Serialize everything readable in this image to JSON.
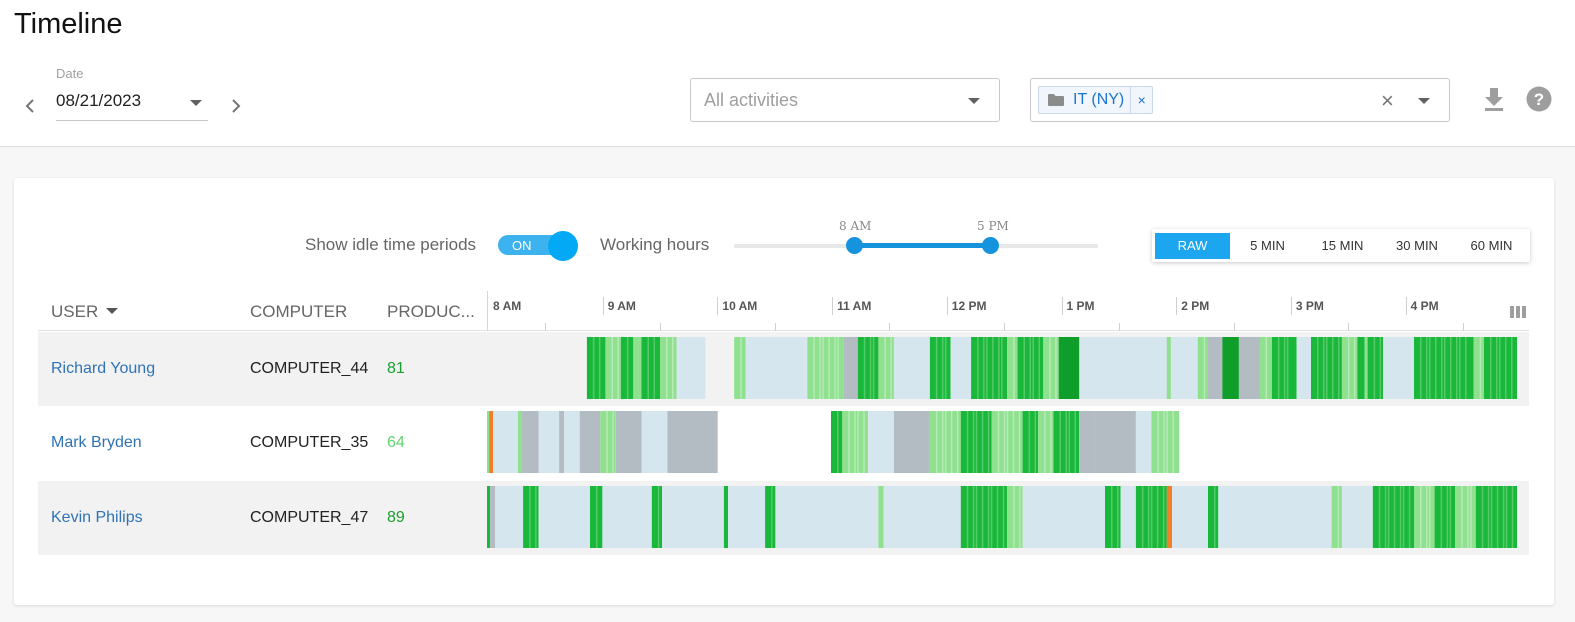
{
  "header": {
    "title": "Timeline",
    "date_label": "Date",
    "date_value": "08/21/2023",
    "activities_placeholder": "All activities",
    "group_chip": "IT (NY)",
    "chip_remove": "×",
    "clear": "×"
  },
  "controls": {
    "idle_label": "Show idle time periods",
    "idle_toggle": "ON",
    "working_hours_label": "Working hours",
    "working_hours": {
      "start": "8 AM",
      "end": "5 PM"
    },
    "granularity": [
      "RAW",
      "5 MIN",
      "15 MIN",
      "30 MIN",
      "60 MIN"
    ],
    "granularity_selected": "RAW"
  },
  "table": {
    "columns": {
      "user": "USER",
      "computer": "COMPUTER",
      "productivity": "PRODUC..."
    },
    "axis_labels": [
      "8 AM",
      "9 AM",
      "10 AM",
      "11 AM",
      "12 PM",
      "1 PM",
      "2 PM",
      "3 PM",
      "4 PM"
    ],
    "rows": [
      {
        "user": "Richard Young",
        "computer": "COMPUTER_44",
        "productivity": "81",
        "productivity_color": "#1a9e2e",
        "segments": [
          [
            0.097,
            0.115,
            "green"
          ],
          [
            0.115,
            0.13,
            "lgreen"
          ],
          [
            0.13,
            0.142,
            "green"
          ],
          [
            0.142,
            0.15,
            "lgreen"
          ],
          [
            0.15,
            0.168,
            "green"
          ],
          [
            0.168,
            0.184,
            "lgreen"
          ],
          [
            0.184,
            0.212,
            "idle"
          ],
          [
            0.24,
            0.251,
            "lgreen"
          ],
          [
            0.251,
            0.311,
            "idle"
          ],
          [
            0.311,
            0.346,
            "lgreen"
          ],
          [
            0.346,
            0.36,
            "gray"
          ],
          [
            0.36,
            0.38,
            "green"
          ],
          [
            0.38,
            0.395,
            "lgreen"
          ],
          [
            0.395,
            0.43,
            "idle"
          ],
          [
            0.43,
            0.45,
            "green"
          ],
          [
            0.45,
            0.47,
            "idle"
          ],
          [
            0.47,
            0.505,
            "green"
          ],
          [
            0.505,
            0.515,
            "lgreen"
          ],
          [
            0.515,
            0.54,
            "green"
          ],
          [
            0.54,
            0.555,
            "lgreen"
          ],
          [
            0.555,
            0.575,
            "dgreen"
          ],
          [
            0.575,
            0.66,
            "idle"
          ],
          [
            0.66,
            0.664,
            "lgreen"
          ],
          [
            0.664,
            0.69,
            "idle"
          ],
          [
            0.69,
            0.7,
            "lgreen"
          ],
          [
            0.7,
            0.714,
            "gray"
          ],
          [
            0.714,
            0.73,
            "dgreen"
          ],
          [
            0.73,
            0.75,
            "gray"
          ],
          [
            0.75,
            0.762,
            "lgreen"
          ],
          [
            0.762,
            0.786,
            "green"
          ],
          [
            0.786,
            0.8,
            "idle"
          ],
          [
            0.8,
            0.83,
            "green"
          ],
          [
            0.83,
            0.845,
            "lgreen"
          ],
          [
            0.845,
            0.852,
            "green"
          ],
          [
            0.852,
            0.855,
            "lgreen"
          ],
          [
            0.855,
            0.87,
            "green"
          ],
          [
            0.87,
            0.9,
            "idle"
          ],
          [
            0.9,
            0.958,
            "green"
          ],
          [
            0.958,
            0.968,
            "lgreen"
          ],
          [
            0.968,
            1.0,
            "green"
          ]
        ]
      },
      {
        "user": "Mark Bryden",
        "computer": "COMPUTER_35",
        "productivity": "64",
        "productivity_color": "#5fd46e",
        "segments": [
          [
            0.0,
            0.002,
            "lgreen"
          ],
          [
            0.002,
            0.006,
            "orange"
          ],
          [
            0.006,
            0.03,
            "idle"
          ],
          [
            0.03,
            0.034,
            "lgreen"
          ],
          [
            0.034,
            0.05,
            "gray"
          ],
          [
            0.05,
            0.07,
            "idle"
          ],
          [
            0.07,
            0.075,
            "gray"
          ],
          [
            0.075,
            0.09,
            "idle"
          ],
          [
            0.09,
            0.11,
            "gray"
          ],
          [
            0.11,
            0.125,
            "lgreen"
          ],
          [
            0.125,
            0.15,
            "gray"
          ],
          [
            0.15,
            0.175,
            "idle"
          ],
          [
            0.175,
            0.2,
            "gray"
          ],
          [
            0.2,
            0.224,
            "gray"
          ],
          [
            0.334,
            0.345,
            "green"
          ],
          [
            0.345,
            0.37,
            "lgreen"
          ],
          [
            0.37,
            0.395,
            "idle"
          ],
          [
            0.395,
            0.43,
            "gray"
          ],
          [
            0.43,
            0.46,
            "lgreen"
          ],
          [
            0.46,
            0.49,
            "green"
          ],
          [
            0.49,
            0.52,
            "lgreen"
          ],
          [
            0.52,
            0.535,
            "green"
          ],
          [
            0.535,
            0.55,
            "lgreen"
          ],
          [
            0.55,
            0.575,
            "green"
          ],
          [
            0.575,
            0.59,
            "gray"
          ],
          [
            0.59,
            0.63,
            "gray"
          ],
          [
            0.63,
            0.645,
            "idle"
          ],
          [
            0.645,
            0.672,
            "lgreen"
          ]
        ]
      },
      {
        "user": "Kevin Philips",
        "computer": "COMPUTER_47",
        "productivity": "89",
        "productivity_color": "#1a9e2e",
        "segments": [
          [
            0.0,
            0.003,
            "green"
          ],
          [
            0.003,
            0.008,
            "gray"
          ],
          [
            0.008,
            0.035,
            "idle"
          ],
          [
            0.035,
            0.05,
            "green"
          ],
          [
            0.05,
            0.1,
            "idle"
          ],
          [
            0.1,
            0.112,
            "green"
          ],
          [
            0.112,
            0.16,
            "idle"
          ],
          [
            0.16,
            0.17,
            "green"
          ],
          [
            0.17,
            0.23,
            "idle"
          ],
          [
            0.23,
            0.234,
            "green"
          ],
          [
            0.234,
            0.27,
            "idle"
          ],
          [
            0.27,
            0.28,
            "green"
          ],
          [
            0.28,
            0.38,
            "idle"
          ],
          [
            0.38,
            0.385,
            "lgreen"
          ],
          [
            0.385,
            0.46,
            "idle"
          ],
          [
            0.46,
            0.505,
            "green"
          ],
          [
            0.505,
            0.52,
            "lgreen"
          ],
          [
            0.52,
            0.6,
            "idle"
          ],
          [
            0.6,
            0.615,
            "green"
          ],
          [
            0.615,
            0.63,
            "idle"
          ],
          [
            0.63,
            0.66,
            "green"
          ],
          [
            0.66,
            0.665,
            "orange"
          ],
          [
            0.665,
            0.7,
            "idle"
          ],
          [
            0.7,
            0.71,
            "green"
          ],
          [
            0.71,
            0.82,
            "idle"
          ],
          [
            0.82,
            0.83,
            "lgreen"
          ],
          [
            0.83,
            0.86,
            "idle"
          ],
          [
            0.86,
            0.9,
            "green"
          ],
          [
            0.9,
            0.92,
            "lgreen"
          ],
          [
            0.92,
            0.94,
            "green"
          ],
          [
            0.94,
            0.96,
            "lgreen"
          ],
          [
            0.96,
            1.0,
            "green"
          ]
        ]
      }
    ]
  },
  "colors": {
    "green": "#1ab83a",
    "dgreen": "#0f9e2a",
    "lgreen": "#8fe08f",
    "idle": "#d6e6ee",
    "gray": "#b3bcc2",
    "orange": "#f07f2a",
    "accent": "#1ba6ef"
  }
}
